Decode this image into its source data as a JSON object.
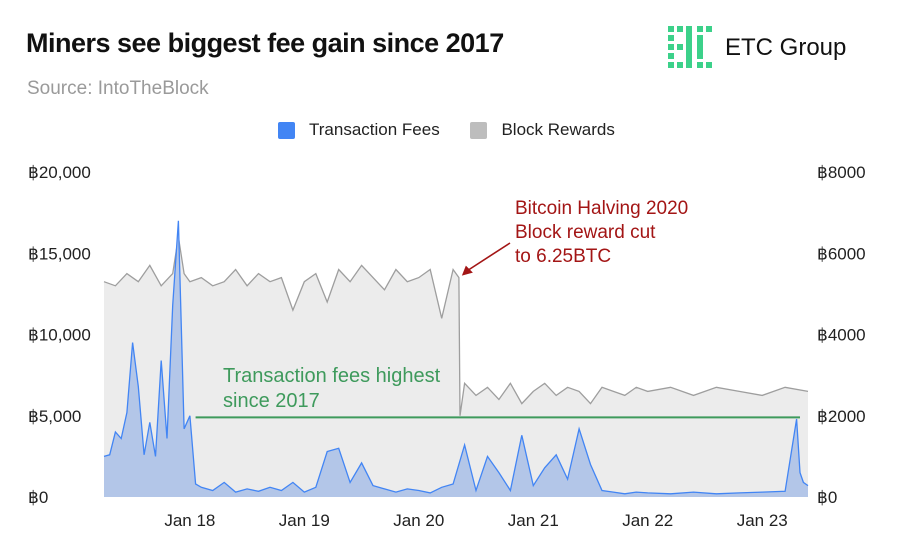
{
  "header": {
    "title": "Miners see biggest fee gain since 2017",
    "source": "Source: IntoTheBlock"
  },
  "logo": {
    "text": "ETC Group",
    "color": "#3cd18a"
  },
  "chart_data": {
    "type": "area",
    "title": "Miners see biggest fee gain since 2017",
    "x_tick_labels": [
      "Jan 18",
      "Jan 19",
      "Jan 20",
      "Jan 21",
      "Jan 22",
      "Jan 23"
    ],
    "x_tick_years": [
      2018,
      2019,
      2020,
      2021,
      2022,
      2023
    ],
    "x_range": [
      2017.25,
      2023.4
    ],
    "y_left": {
      "ylim": [
        0,
        20000
      ],
      "tick_labels": [
        "฿0",
        "฿5,000",
        "฿10,000",
        "฿15,000",
        "฿20,000"
      ],
      "tick_values": [
        0,
        5000,
        10000,
        15000,
        20000
      ]
    },
    "y_right": {
      "ylim": [
        0,
        8000
      ],
      "tick_labels": [
        "฿0",
        "฿2000",
        "฿4000",
        "฿6000",
        "฿8000"
      ],
      "tick_values": [
        0,
        2000,
        4000,
        6000,
        8000
      ]
    },
    "legend": [
      "Transaction Fees",
      "Block Rewards"
    ],
    "series": [
      {
        "name": "Transaction Fees",
        "axis": "left",
        "color": "#4285f4",
        "fill": "#b3c6e8",
        "x": [
          2017.25,
          2017.3,
          2017.35,
          2017.4,
          2017.45,
          2017.5,
          2017.55,
          2017.6,
          2017.65,
          2017.7,
          2017.75,
          2017.8,
          2017.85,
          2017.9,
          2017.95,
          2018.0,
          2018.05,
          2018.1,
          2018.2,
          2018.3,
          2018.4,
          2018.5,
          2018.6,
          2018.7,
          2018.8,
          2018.9,
          2019.0,
          2019.1,
          2019.2,
          2019.3,
          2019.4,
          2019.5,
          2019.6,
          2019.7,
          2019.8,
          2019.9,
          2020.0,
          2020.1,
          2020.2,
          2020.3,
          2020.4,
          2020.5,
          2020.6,
          2020.7,
          2020.8,
          2020.9,
          2021.0,
          2021.1,
          2021.2,
          2021.3,
          2021.4,
          2021.5,
          2021.6,
          2021.7,
          2021.8,
          2021.9,
          2022.0,
          2022.2,
          2022.4,
          2022.6,
          2022.8,
          2023.0,
          2023.2,
          2023.3,
          2023.33,
          2023.36,
          2023.4
        ],
        "values": [
          2500,
          2600,
          4000,
          3600,
          5200,
          9500,
          6800,
          2600,
          4600,
          2500,
          8400,
          3600,
          11800,
          17000,
          4200,
          5000,
          800,
          600,
          400,
          900,
          300,
          500,
          350,
          600,
          400,
          900,
          300,
          600,
          2800,
          3000,
          900,
          2100,
          700,
          500,
          300,
          500,
          400,
          250,
          600,
          800,
          3200,
          400,
          2500,
          1500,
          400,
          3800,
          700,
          1800,
          2600,
          1100,
          4200,
          2000,
          400,
          300,
          200,
          300,
          250,
          200,
          300,
          200,
          250,
          300,
          350,
          4800,
          1500,
          900,
          700
        ]
      },
      {
        "name": "Block Rewards",
        "axis": "right",
        "color": "#9e9e9e",
        "fill": "#ececec",
        "x": [
          2017.25,
          2017.35,
          2017.45,
          2017.55,
          2017.65,
          2017.75,
          2017.85,
          2017.9,
          2017.95,
          2018.0,
          2018.1,
          2018.2,
          2018.3,
          2018.4,
          2018.5,
          2018.6,
          2018.7,
          2018.8,
          2018.9,
          2019.0,
          2019.1,
          2019.2,
          2019.3,
          2019.4,
          2019.5,
          2019.6,
          2019.7,
          2019.8,
          2019.9,
          2020.0,
          2020.1,
          2020.2,
          2020.3,
          2020.35,
          2020.36,
          2020.4,
          2020.5,
          2020.6,
          2020.7,
          2020.8,
          2020.9,
          2021.0,
          2021.1,
          2021.2,
          2021.3,
          2021.4,
          2021.5,
          2021.6,
          2021.7,
          2021.8,
          2021.9,
          2022.0,
          2022.2,
          2022.4,
          2022.6,
          2022.8,
          2023.0,
          2023.2,
          2023.4
        ],
        "values": [
          5300,
          5200,
          5500,
          5300,
          5700,
          5200,
          5500,
          6400,
          5500,
          5300,
          5400,
          5200,
          5300,
          5600,
          5200,
          5500,
          5300,
          5400,
          4600,
          5300,
          5500,
          4800,
          5600,
          5300,
          5700,
          5400,
          5100,
          5600,
          5300,
          5400,
          5600,
          4400,
          5600,
          5400,
          2000,
          2800,
          2500,
          2700,
          2400,
          2800,
          2300,
          2600,
          2800,
          2500,
          2700,
          2600,
          2300,
          2700,
          2600,
          2500,
          2700,
          2600,
          2700,
          2500,
          2700,
          2600,
          2500,
          2700,
          2600
        ]
      }
    ],
    "annotations": [
      {
        "lines": [
          "Bitcoin Halving 2020",
          "Block reward cut",
          "to 6.25BTC"
        ],
        "color": "#a31515",
        "arrow_to": {
          "x": 2020.35,
          "y_right": 5400
        }
      },
      {
        "lines": [
          "Transaction fees highest",
          "since 2017"
        ],
        "color": "#3e9a5c",
        "hline": {
          "y_left": 4900,
          "x_from": 2018.05,
          "x_to": 2023.33
        }
      }
    ]
  }
}
